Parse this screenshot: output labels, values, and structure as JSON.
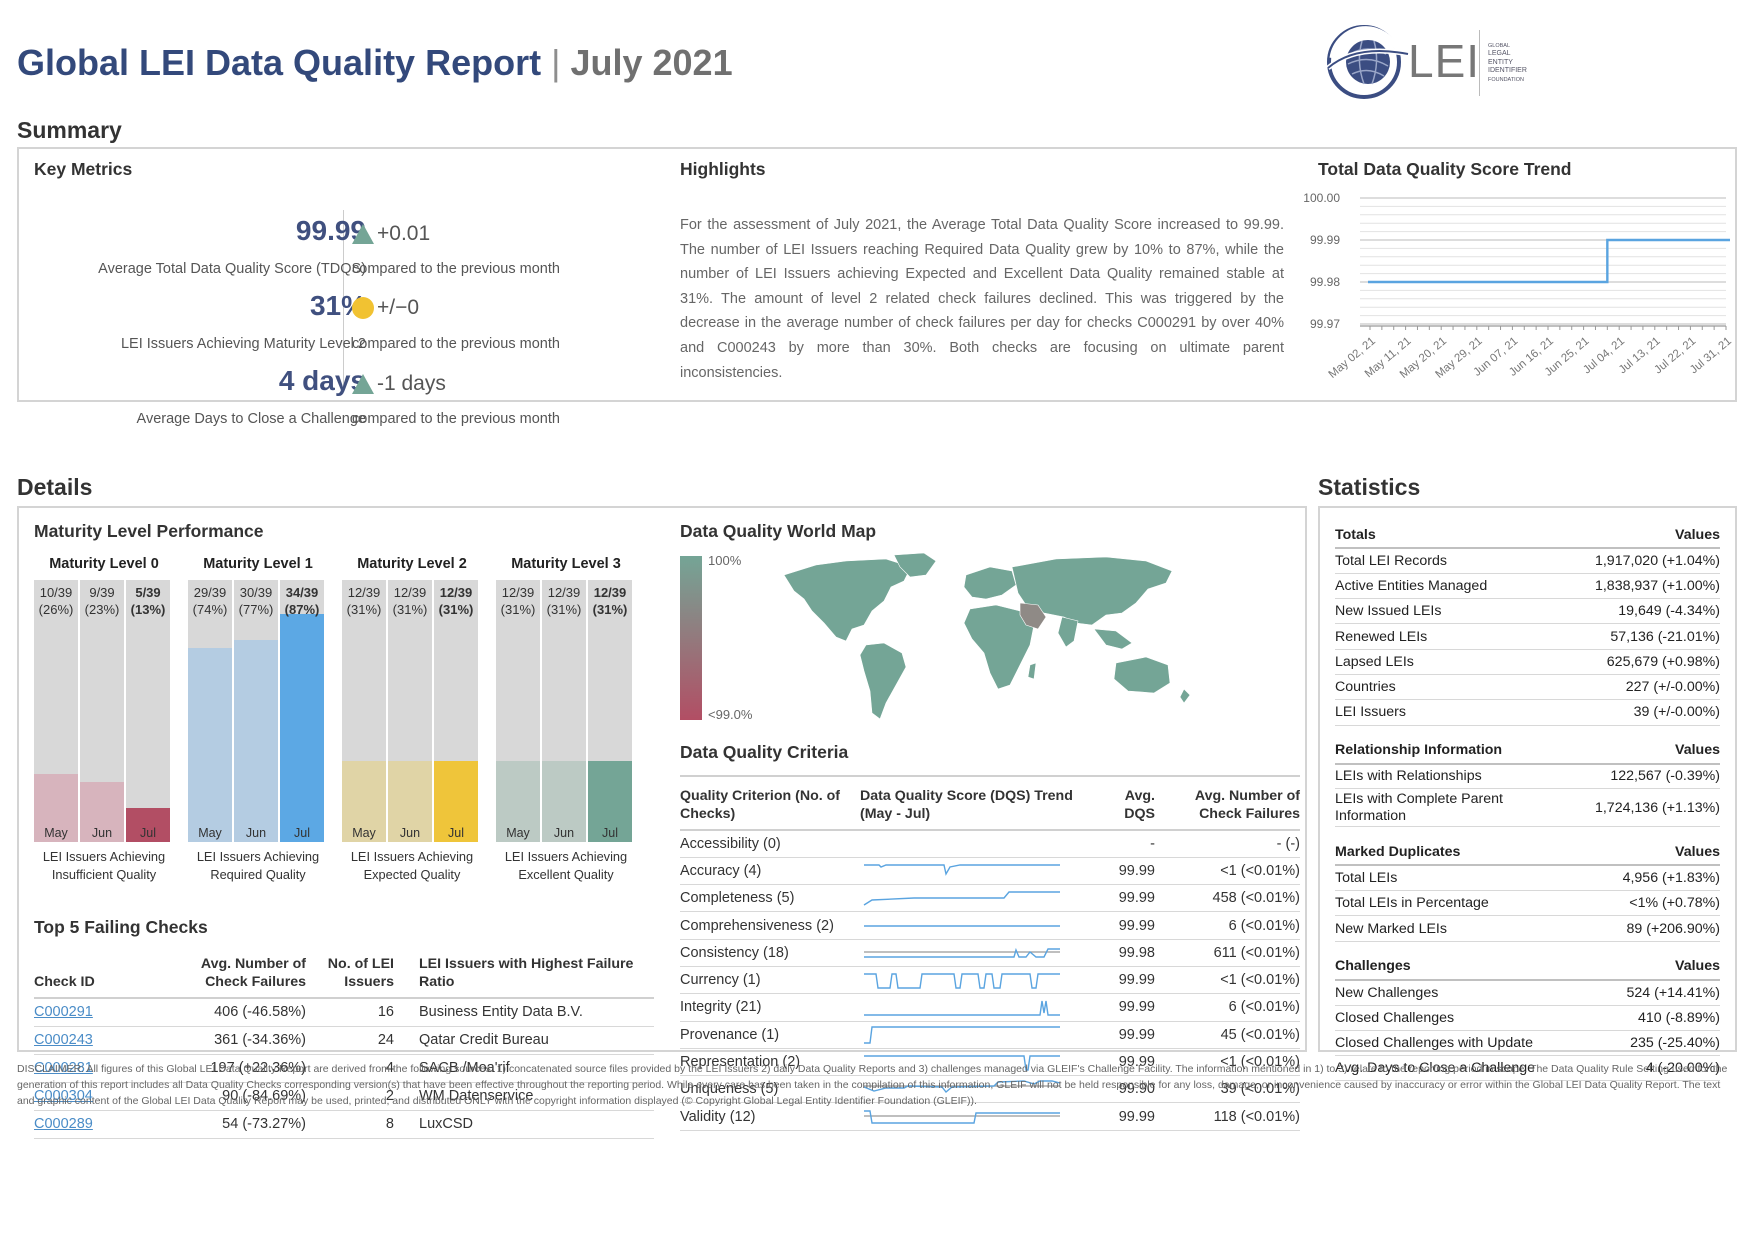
{
  "header": {
    "title": "Global LEI Data Quality Report",
    "separator": "|",
    "period": "July 2021",
    "logo": {
      "text": "LEI",
      "small": [
        "GLOBAL",
        "LEGAL",
        "ENTITY",
        "IDENTIFIER",
        "FOUNDATION"
      ]
    }
  },
  "summary": {
    "heading": "Summary",
    "key_metrics": {
      "heading": "Key Metrics",
      "items": [
        {
          "value": "99.99",
          "label": "Average Total Data Quality Score (TDQS)",
          "delta": "+0.01",
          "delta_icon": "up-triangle-icon",
          "compare": "compared to the previous month"
        },
        {
          "value": "31%",
          "label": "LEI Issuers Achieving Maturity Level 2",
          "delta": "+/−0",
          "delta_icon": "neutral-dot-icon",
          "compare": "compared to the previous month"
        },
        {
          "value": "4 days",
          "label": "Average Days to Close a Challenge",
          "delta": "-1 days",
          "delta_icon": "up-triangle-icon",
          "compare": "compared to the previous month"
        }
      ]
    },
    "highlights": {
      "heading": "Highlights",
      "text": "For the assessment of July 2021, the Average Total Data Quality Score increased to 99.99. The number of LEI Issuers reaching Required Data Quality grew by 10% to 87%, while the number of LEI Issuers achieving Expected and Excellent Data Quality remained stable at 31%. The amount of level 2 related check failures declined. This was triggered by the decrease in the average number of check failures per day for checks C000291 by over 40% and C000243 by more than 30%. Both checks are focusing on ultimate parent inconsistencies."
    },
    "trend": {
      "heading": "Total Data Quality Score Trend"
    }
  },
  "chart_data": {
    "type": "line",
    "title": "Total Data Quality Score Trend",
    "x": [
      "May 02, 21",
      "May 11, 21",
      "May 20, 21",
      "May 29, 21",
      "Jun 07, 21",
      "Jun 16, 21",
      "Jun 25, 21",
      "Jul 04, 21",
      "Jul 13, 21",
      "Jul 22, 21",
      "Jul 31, 21"
    ],
    "y": [
      99.98,
      99.98,
      99.98,
      99.98,
      99.98,
      99.98,
      99.98,
      99.99,
      99.99,
      99.99,
      99.99
    ],
    "step_date": "Jul 01, 21",
    "yticks": [
      "100.00",
      "99.99",
      "99.98",
      "99.97"
    ],
    "ylim": [
      99.97,
      100.0
    ],
    "grid": true,
    "color": "#5aa4e0"
  },
  "details": {
    "heading": "Details",
    "maturity": {
      "heading": "Maturity Level Performance",
      "levels": [
        {
          "title": "Maturity Level 0",
          "caption": "LEI Issuers Achieving Insufficient Quality",
          "color_light": "#d7b4bd",
          "color_dark": "#b24e64",
          "cols": [
            {
              "frac": "10/39",
              "pct": "(26%)",
              "share": 0.26,
              "month": "May"
            },
            {
              "frac": "9/39",
              "pct": "(23%)",
              "share": 0.23,
              "month": "Jun"
            },
            {
              "frac": "5/39",
              "pct": "(13%)",
              "share": 0.13,
              "month": "Jul"
            }
          ]
        },
        {
          "title": "Maturity Level 1",
          "caption": "LEI Issuers Achieving Required Quality",
          "color_light": "#b4cce2",
          "color_dark": "#5ca8e4",
          "cols": [
            {
              "frac": "29/39",
              "pct": "(74%)",
              "share": 0.74,
              "month": "May"
            },
            {
              "frac": "30/39",
              "pct": "(77%)",
              "share": 0.77,
              "month": "Jun"
            },
            {
              "frac": "34/39",
              "pct": "(87%)",
              "share": 0.87,
              "month": "Jul"
            }
          ]
        },
        {
          "title": "Maturity Level 2",
          "caption": "LEI Issuers Achieving Expected Quality",
          "color_light": "#e0d4a6",
          "color_dark": "#efc53a",
          "cols": [
            {
              "frac": "12/39",
              "pct": "(31%)",
              "share": 0.31,
              "month": "May"
            },
            {
              "frac": "12/39",
              "pct": "(31%)",
              "share": 0.31,
              "month": "Jun"
            },
            {
              "frac": "12/39",
              "pct": "(31%)",
              "share": 0.31,
              "month": "Jul"
            }
          ]
        },
        {
          "title": "Maturity Level 3",
          "caption": "LEI Issuers Achieving Excellent Quality",
          "color_light": "#bccac4",
          "color_dark": "#74a596",
          "cols": [
            {
              "frac": "12/39",
              "pct": "(31%)",
              "share": 0.31,
              "month": "May"
            },
            {
              "frac": "12/39",
              "pct": "(31%)",
              "share": 0.31,
              "month": "Jun"
            },
            {
              "frac": "12/39",
              "pct": "(31%)",
              "share": 0.31,
              "month": "Jul"
            }
          ]
        }
      ]
    },
    "failing": {
      "heading": "Top 5 Failing Checks",
      "columns": [
        "Check ID",
        "Avg. Number of Check Failures",
        "No. of LEI Issuers",
        "LEI Issuers with Highest Failure Ratio"
      ],
      "rows": [
        {
          "id": "C000291",
          "avg": "406 (-46.58%)",
          "issuers": "16",
          "highest": "Business Entity Data B.V."
        },
        {
          "id": "C000243",
          "avg": "361 (-34.36%)",
          "issuers": "24",
          "highest": "Qatar Credit Bureau"
        },
        {
          "id": "C000281",
          "avg": "197 (+22.36%)",
          "issuers": "4",
          "highest": "SACB /Moa'rif"
        },
        {
          "id": "C000304",
          "avg": "90 (-84.69%)",
          "issuers": "2",
          "highest": "WM Datenservice"
        },
        {
          "id": "C000289",
          "avg": "54 (-73.27%)",
          "issuers": "8",
          "highest": "LuxCSD"
        }
      ]
    },
    "map": {
      "heading": "Data Quality World Map",
      "legend_top": "100%",
      "legend_bottom": "<99.0%",
      "color_high": "#74a596",
      "color_low": "#b24e64"
    },
    "criteria": {
      "heading": "Data Quality Criteria",
      "columns": [
        "Quality Criterion (No. of Checks)",
        "Data Quality Score (DQS) Trend (May - Jul)",
        "Avg. DQS",
        "Avg. Number of Check Failures"
      ],
      "rows": [
        {
          "name": "Accessibility (0)",
          "dqs": "-",
          "fail": "- (-)",
          "spark": "none"
        },
        {
          "name": "Accuracy (4)",
          "dqs": "99.99",
          "fail": "<1 (<0.01%)",
          "spark": "accuracy"
        },
        {
          "name": "Completeness (5)",
          "dqs": "99.99",
          "fail": "458 (<0.01%)",
          "spark": "completeness"
        },
        {
          "name": "Comprehensiveness (2)",
          "dqs": "99.99",
          "fail": "6 (<0.01%)",
          "spark": "flat"
        },
        {
          "name": "Consistency (18)",
          "dqs": "99.98",
          "fail": "611 (<0.01%)",
          "spark": "consistency"
        },
        {
          "name": "Currency (1)",
          "dqs": "99.99",
          "fail": "<1 (<0.01%)",
          "spark": "currency"
        },
        {
          "name": "Integrity (21)",
          "dqs": "99.99",
          "fail": "6 (<0.01%)",
          "spark": "integrity"
        },
        {
          "name": "Provenance (1)",
          "dqs": "99.99",
          "fail": "45 (<0.01%)",
          "spark": "provenance"
        },
        {
          "name": "Representation (2)",
          "dqs": "99.99",
          "fail": "<1 (<0.01%)",
          "spark": "representation"
        },
        {
          "name": "Uniqueness (5)",
          "dqs": "99.90",
          "fail": "39 (<0.01%)",
          "spark": "uniqueness"
        },
        {
          "name": "Validity (12)",
          "dqs": "99.99",
          "fail": "118 (<0.01%)",
          "spark": "validity"
        }
      ]
    }
  },
  "statistics": {
    "heading": "Statistics",
    "sections": [
      {
        "title": "Totals",
        "values_label": "Values",
        "rows": [
          [
            "Total LEI Records",
            "1,917,020 (+1.04%)"
          ],
          [
            "Active Entities Managed",
            "1,838,937 (+1.00%)"
          ],
          [
            "New Issued LEIs",
            "19,649 (-4.34%)"
          ],
          [
            "Renewed LEIs",
            "57,136 (-21.01%)"
          ],
          [
            "Lapsed LEIs",
            "625,679 (+0.98%)"
          ],
          [
            "Countries",
            "227 (+/-0.00%)"
          ],
          [
            "LEI Issuers",
            "39 (+/-0.00%)"
          ]
        ]
      },
      {
        "title": "Relationship Information",
        "values_label": "Values",
        "rows": [
          [
            "LEIs with Relationships",
            "122,567 (-0.39%)"
          ],
          [
            "LEIs with Complete Parent Information",
            "1,724,136 (+1.13%)"
          ]
        ]
      },
      {
        "title": "Marked Duplicates",
        "values_label": "Values",
        "rows": [
          [
            "Total LEIs",
            "4,956 (+1.83%)"
          ],
          [
            "Total LEIs in Percentage",
            "<1% (+0.78%)"
          ],
          [
            "New Marked LEIs",
            "89 (+206.90%)"
          ]
        ]
      },
      {
        "title": "Challenges",
        "values_label": "Values",
        "rows": [
          [
            "New Challenges",
            "524 (+14.41%)"
          ],
          [
            "Closed Challenges",
            "410 (-8.89%)"
          ],
          [
            "Closed Challenges with Update",
            "235 (-25.40%)"
          ],
          [
            "Avg. Days to Close a Challenge",
            "4 (-20.00%)"
          ]
        ]
      }
    ]
  },
  "disclaimer": "DISCLAIMER: All figures of this Global LEI Data Quality Report are derived from the following sources: 1) concatenated source files provided by the LEI Issuers 2) daily Data Quality Reports and 3) challenges managed via GLEIF's Challenge Facility. The information mentioned in 1) to 3) relate to the reporting period in scope. The Data Quality Rule Setting used for the generation of this report includes all Data Quality Checks corresponding version(s) that have been effective throughout the reporting period. While every care has been taken in the compilation of this information, GLEIF will not be held responsible for any loss, damage, or inconvenience caused by inaccuracy or error within the Global LEI Data Quality Report. The text and graphic content of the Global LEI Data Quality Report may be used, printed, and distributed ONLY with the copyright information displayed (© Copyright Global Legal Entity Identifier Foundation (GLEIF))."
}
